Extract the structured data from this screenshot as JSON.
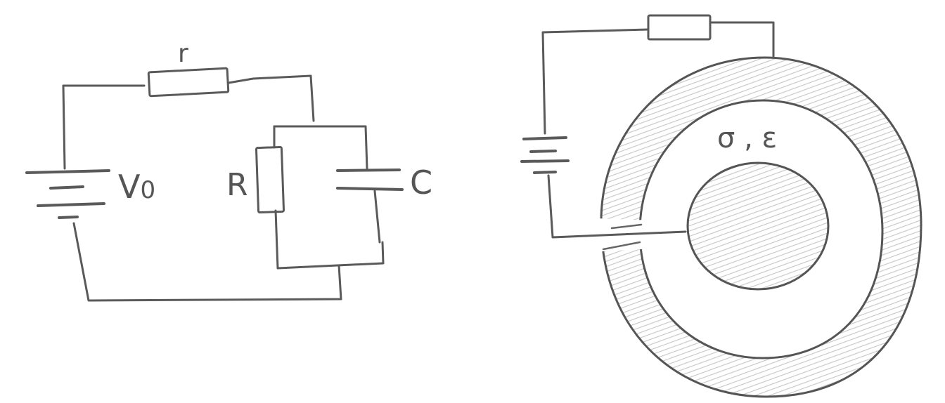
{
  "left_circuit": {
    "label_r": "r",
    "label_v0": "V",
    "label_v0_sub": "0",
    "label_R": "R",
    "label_C": "C"
  },
  "right_figure": {
    "material_label": "σ , ε"
  },
  "colors": {
    "line": "#5a5a5a",
    "hatch": "#cfcfcf",
    "background": "#ffffff"
  }
}
